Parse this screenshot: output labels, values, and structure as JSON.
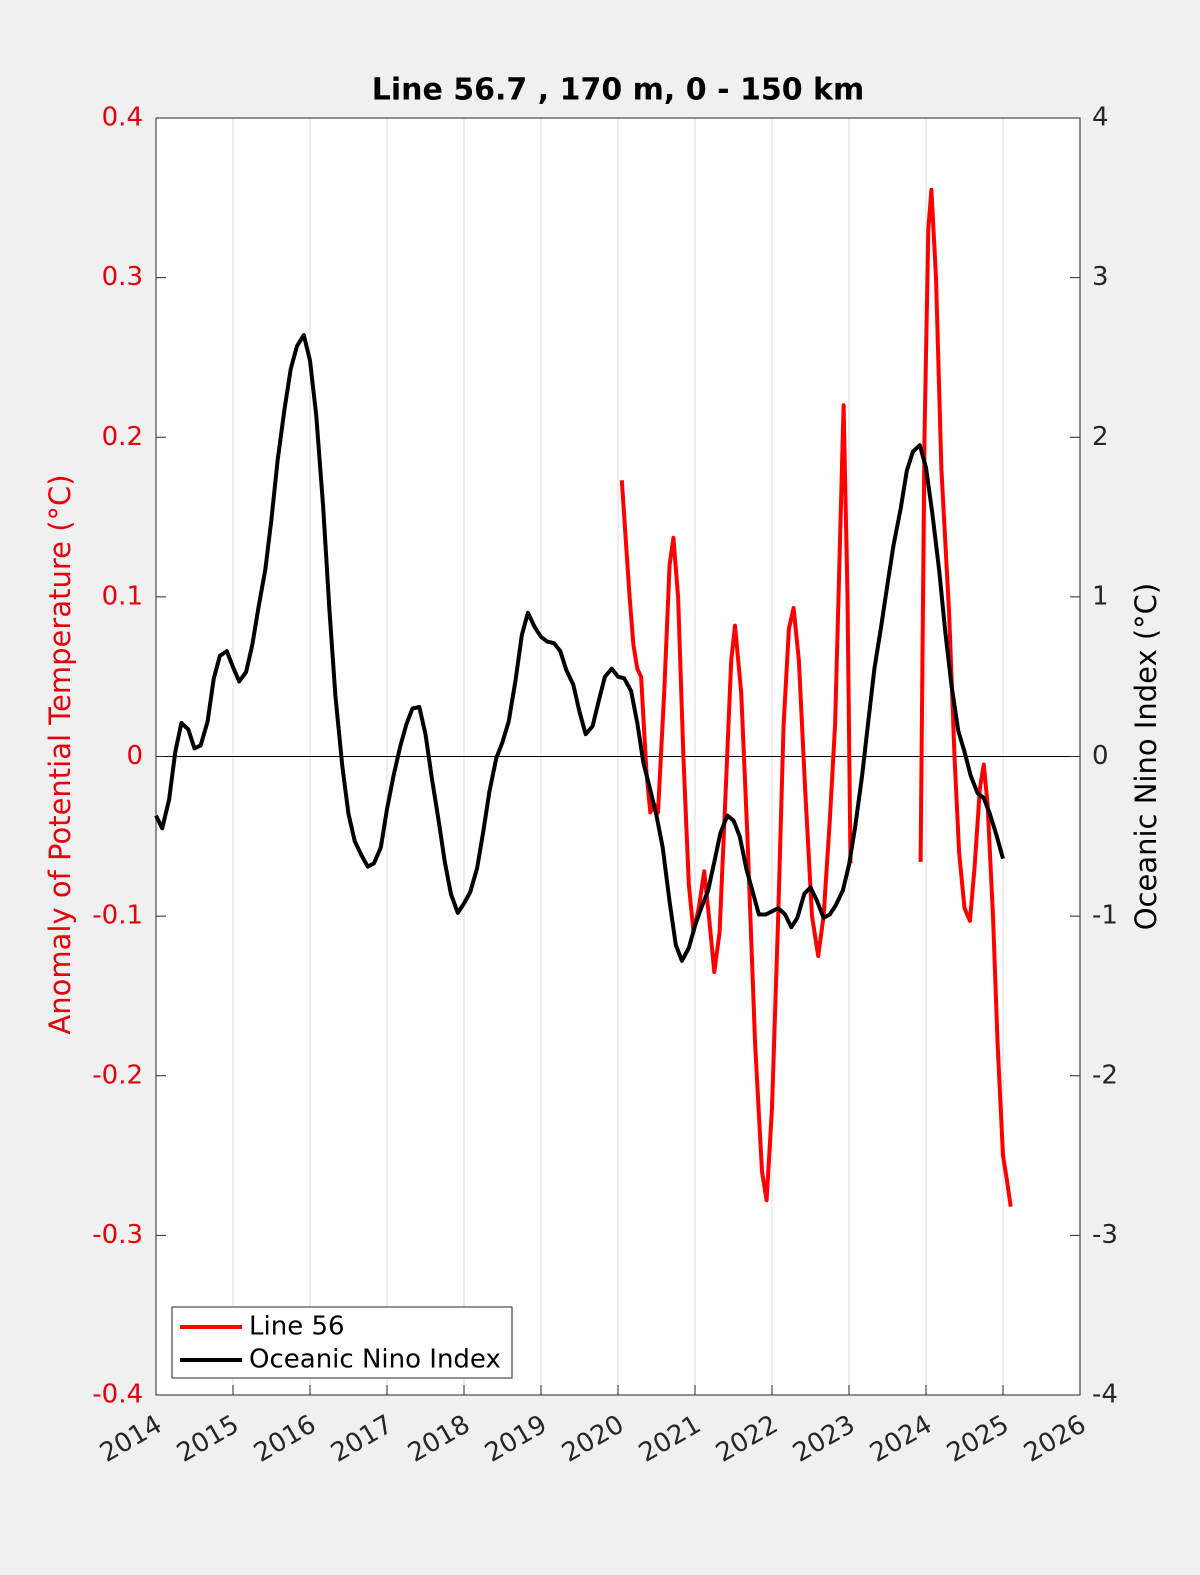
{
  "chart_data": {
    "type": "line",
    "title": "Line 56.7 , 170 m, 0 - 150 km",
    "ylabel": "Anomaly of Potential Temperature (°C)",
    "y2label": "Oceanic Nino Index (°C)",
    "xlim": [
      2014,
      2026
    ],
    "xticks": [
      2014,
      2015,
      2016,
      2017,
      2018,
      2019,
      2020,
      2021,
      2022,
      2023,
      2024,
      2025,
      2026
    ],
    "ylim": [
      -0.4,
      0.4
    ],
    "yticks": [
      -0.4,
      -0.3,
      -0.2,
      -0.1,
      0,
      0.1,
      0.2,
      0.3,
      0.4
    ],
    "y2lim": [
      -4,
      4
    ],
    "y2ticks": [
      -4,
      -3,
      -2,
      -1,
      0,
      1,
      2,
      3,
      4
    ],
    "xgrid": true,
    "zero_line": true,
    "legend": "lower left",
    "ylabel_color": "#e8000b",
    "series": [
      {
        "name": "Line 56",
        "color": "#ff0000",
        "axis": "y",
        "x": [
          2020.05,
          2020.15,
          2020.2,
          2020.25,
          2020.3,
          2020.37,
          2020.42,
          2020.47,
          2020.52,
          2020.6,
          2020.67,
          2020.72,
          2020.78,
          2020.85,
          2020.92,
          2020.98,
          2021.05,
          2021.12,
          2021.18,
          2021.25,
          2021.32,
          2021.4,
          2021.47,
          2021.52,
          2021.6,
          2021.68,
          2021.78,
          2021.87,
          2021.93,
          2022.0,
          2022.08,
          2022.15,
          2022.22,
          2022.28,
          2022.35,
          2022.43,
          2022.52,
          2022.6,
          2022.67,
          2022.75,
          2022.82,
          2022.88,
          2022.93,
          2022.98,
          2023.02,
          2023.5,
          2023.93,
          2023.98,
          2024.03,
          2024.07,
          2024.13,
          2024.2,
          2024.3,
          2024.37,
          2024.43,
          2024.5,
          2024.57,
          2024.63,
          2024.7,
          2024.75,
          2024.8,
          2024.87,
          2024.93,
          2025.0,
          2025.05,
          2025.1
        ],
        "values": [
          0.173,
          0.1,
          0.07,
          0.055,
          0.05,
          -0.01,
          -0.035,
          -0.03,
          -0.035,
          0.04,
          0.12,
          0.137,
          0.1,
          0.0,
          -0.08,
          -0.11,
          -0.095,
          -0.072,
          -0.1,
          -0.135,
          -0.11,
          -0.02,
          0.06,
          0.082,
          0.04,
          -0.05,
          -0.18,
          -0.26,
          -0.278,
          -0.22,
          -0.1,
          0.02,
          0.08,
          0.093,
          0.06,
          -0.02,
          -0.1,
          -0.125,
          -0.1,
          -0.04,
          0.02,
          0.13,
          0.22,
          0.1,
          -0.067,
          null,
          -0.066,
          0.2,
          0.33,
          0.355,
          0.3,
          0.18,
          0.09,
          0.0,
          -0.06,
          -0.095,
          -0.103,
          -0.07,
          -0.02,
          -0.005,
          -0.03,
          -0.1,
          -0.18,
          -0.25,
          -0.265,
          -0.282
        ]
      },
      {
        "name": "Oceanic Nino Index",
        "color": "#000000",
        "axis": "y2",
        "x": [
          2014.0,
          2014.08,
          2014.17,
          2014.25,
          2014.33,
          2014.42,
          2014.5,
          2014.58,
          2014.67,
          2014.75,
          2014.83,
          2014.92,
          2015.0,
          2015.08,
          2015.17,
          2015.25,
          2015.33,
          2015.42,
          2015.5,
          2015.58,
          2015.67,
          2015.75,
          2015.83,
          2015.92,
          2016.0,
          2016.08,
          2016.17,
          2016.25,
          2016.33,
          2016.42,
          2016.5,
          2016.58,
          2016.67,
          2016.75,
          2016.83,
          2016.92,
          2017.0,
          2017.08,
          2017.17,
          2017.25,
          2017.33,
          2017.42,
          2017.5,
          2017.58,
          2017.67,
          2017.75,
          2017.83,
          2017.92,
          2018.0,
          2018.08,
          2018.17,
          2018.25,
          2018.33,
          2018.42,
          2018.5,
          2018.58,
          2018.67,
          2018.75,
          2018.83,
          2018.92,
          2019.0,
          2019.08,
          2019.17,
          2019.25,
          2019.33,
          2019.42,
          2019.5,
          2019.58,
          2019.67,
          2019.75,
          2019.83,
          2019.92,
          2020.0,
          2020.08,
          2020.17,
          2020.25,
          2020.33,
          2020.42,
          2020.5,
          2020.58,
          2020.67,
          2020.75,
          2020.83,
          2020.92,
          2021.0,
          2021.08,
          2021.17,
          2021.25,
          2021.33,
          2021.42,
          2021.5,
          2021.58,
          2021.67,
          2021.75,
          2021.83,
          2021.92,
          2022.0,
          2022.08,
          2022.17,
          2022.25,
          2022.33,
          2022.42,
          2022.5,
          2022.58,
          2022.67,
          2022.75,
          2022.83,
          2022.92,
          2023.0,
          2023.08,
          2023.17,
          2023.25,
          2023.33,
          2023.42,
          2023.5,
          2023.58,
          2023.67,
          2023.75,
          2023.83,
          2023.92,
          2024.0,
          2024.08,
          2024.17,
          2024.25,
          2024.33,
          2024.42,
          2024.5,
          2024.58,
          2024.67,
          2024.75,
          2024.83,
          2024.92,
          2025.0
        ],
        "values": [
          -0.37,
          -0.45,
          -0.27,
          0.03,
          0.21,
          0.17,
          0.05,
          0.07,
          0.22,
          0.49,
          0.63,
          0.66,
          0.56,
          0.47,
          0.53,
          0.7,
          0.93,
          1.17,
          1.49,
          1.86,
          2.18,
          2.43,
          2.57,
          2.64,
          2.48,
          2.14,
          1.57,
          0.93,
          0.38,
          -0.06,
          -0.36,
          -0.53,
          -0.62,
          -0.69,
          -0.67,
          -0.57,
          -0.33,
          -0.13,
          0.06,
          0.2,
          0.3,
          0.31,
          0.14,
          -0.13,
          -0.4,
          -0.66,
          -0.86,
          -0.98,
          -0.92,
          -0.85,
          -0.7,
          -0.47,
          -0.22,
          -0.01,
          0.09,
          0.22,
          0.48,
          0.76,
          0.9,
          0.81,
          0.75,
          0.72,
          0.71,
          0.66,
          0.54,
          0.45,
          0.28,
          0.14,
          0.19,
          0.35,
          0.5,
          0.55,
          0.5,
          0.49,
          0.41,
          0.21,
          -0.04,
          -0.21,
          -0.37,
          -0.57,
          -0.91,
          -1.18,
          -1.28,
          -1.2,
          -1.06,
          -0.95,
          -0.84,
          -0.66,
          -0.48,
          -0.37,
          -0.4,
          -0.5,
          -0.71,
          -0.85,
          -0.99,
          -0.99,
          -0.97,
          -0.95,
          -0.99,
          -1.07,
          -1.01,
          -0.86,
          -0.82,
          -0.9,
          -1.01,
          -0.99,
          -0.93,
          -0.84,
          -0.68,
          -0.44,
          -0.12,
          0.22,
          0.55,
          0.82,
          1.08,
          1.33,
          1.55,
          1.79,
          1.91,
          1.95,
          1.81,
          1.53,
          1.17,
          0.78,
          0.45,
          0.16,
          0.03,
          -0.12,
          -0.23,
          -0.26,
          -0.36,
          -0.5,
          -0.64
        ]
      }
    ]
  }
}
